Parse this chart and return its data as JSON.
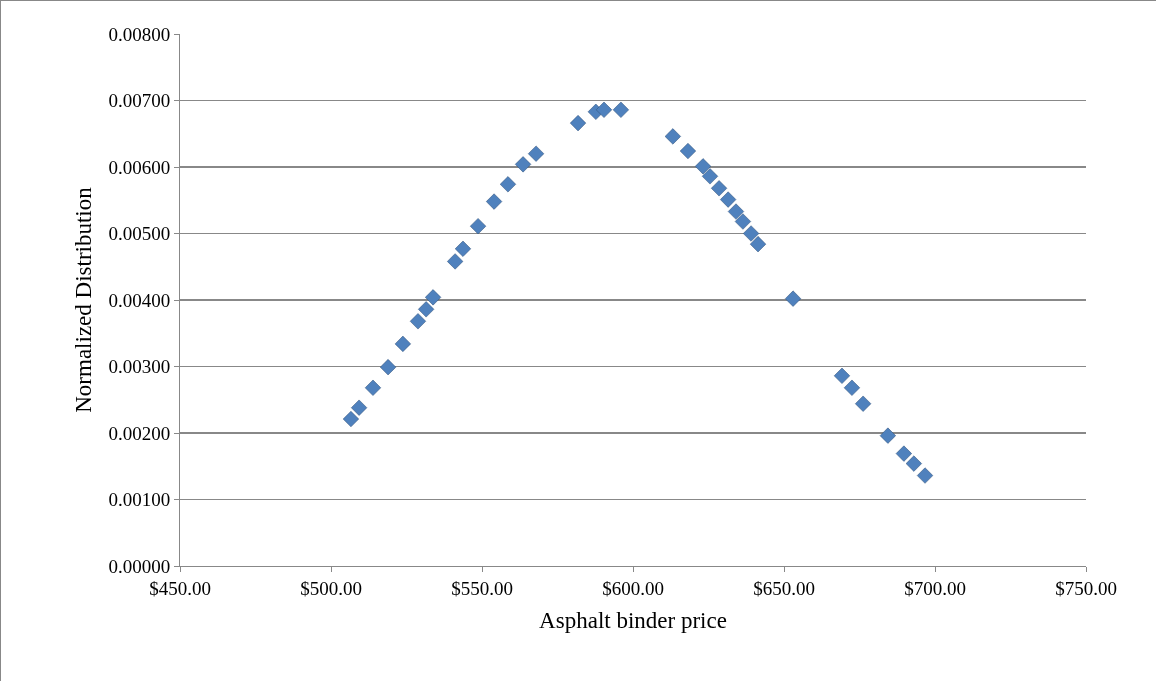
{
  "chart_data": {
    "type": "scatter",
    "xlabel": "Asphalt binder price",
    "ylabel": "Normalized Distribution",
    "marker": "diamond",
    "grid": "y",
    "xlim": [
      450,
      750
    ],
    "xticks": [
      {
        "value": 450,
        "label": "$450.00"
      },
      {
        "value": 500,
        "label": "$500.00"
      },
      {
        "value": 550,
        "label": "$550.00"
      },
      {
        "value": 600,
        "label": "$600.00"
      },
      {
        "value": 650,
        "label": "$650.00"
      },
      {
        "value": 700,
        "label": "$700.00"
      },
      {
        "value": 750,
        "label": "$750.00"
      }
    ],
    "ylim": [
      0,
      0.008
    ],
    "yticks": [
      {
        "value": 0,
        "label": "0.00000"
      },
      {
        "value": 0.001,
        "label": "0.00100"
      },
      {
        "value": 0.002,
        "label": "0.00200"
      },
      {
        "value": 0.003,
        "label": "0.00300"
      },
      {
        "value": 0.004,
        "label": "0.00400"
      },
      {
        "value": 0.005,
        "label": "0.00500"
      },
      {
        "value": 0.006,
        "label": "0.00600"
      },
      {
        "value": 0.007,
        "label": "0.00700"
      },
      {
        "value": 0.008,
        "label": "0.00800"
      }
    ],
    "series": [
      {
        "color": "#4f81bd",
        "x": [
          506.6,
          509.3,
          513.9,
          518.9,
          523.8,
          528.8,
          531.5,
          533.8,
          541.1,
          543.7,
          548.7,
          554.0,
          558.6,
          563.6,
          567.9,
          581.8,
          587.7,
          590.4,
          596.0,
          613.2,
          618.2,
          623.2,
          625.5,
          628.5,
          631.5,
          634.1,
          636.4,
          639.1,
          641.4,
          653.0,
          669.2,
          672.5,
          676.2,
          684.4,
          689.7,
          693.0,
          696.7
        ],
        "values": [
          0.00221,
          0.00238,
          0.00268,
          0.00299,
          0.00334,
          0.00368,
          0.00386,
          0.00404,
          0.00458,
          0.00477,
          0.00511,
          0.00548,
          0.00574,
          0.00604,
          0.0062,
          0.00666,
          0.00683,
          0.00686,
          0.00686,
          0.00646,
          0.00624,
          0.00601,
          0.00586,
          0.00568,
          0.00551,
          0.00533,
          0.00518,
          0.005,
          0.00484,
          0.00402,
          0.00286,
          0.00268,
          0.00244,
          0.00196,
          0.00169,
          0.00154,
          0.00136
        ]
      }
    ]
  }
}
